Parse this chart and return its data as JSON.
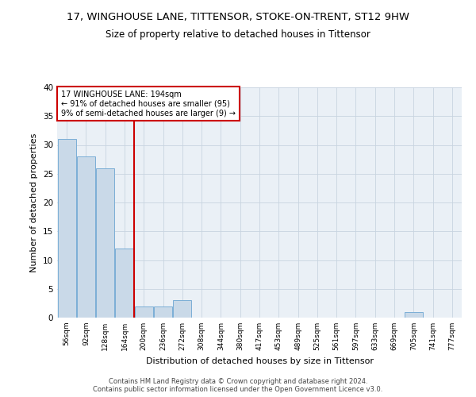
{
  "title": "17, WINGHOUSE LANE, TITTENSOR, STOKE-ON-TRENT, ST12 9HW",
  "subtitle": "Size of property relative to detached houses in Tittensor",
  "xlabel": "Distribution of detached houses by size in Tittensor",
  "ylabel": "Number of detached properties",
  "bin_labels": [
    "56sqm",
    "92sqm",
    "128sqm",
    "164sqm",
    "200sqm",
    "236sqm",
    "272sqm",
    "308sqm",
    "344sqm",
    "380sqm",
    "417sqm",
    "453sqm",
    "489sqm",
    "525sqm",
    "561sqm",
    "597sqm",
    "633sqm",
    "669sqm",
    "705sqm",
    "741sqm",
    "777sqm"
  ],
  "bar_heights": [
    31,
    28,
    26,
    12,
    2,
    2,
    3,
    0,
    0,
    0,
    0,
    0,
    0,
    0,
    0,
    0,
    0,
    0,
    1,
    0,
    0
  ],
  "bar_color": "#c9d9e8",
  "bar_edge_color": "#7baed6",
  "vline_x_idx": 4,
  "vline_color": "#cc0000",
  "annotation_text": "17 WINGHOUSE LANE: 194sqm\n← 91% of detached houses are smaller (95)\n9% of semi-detached houses are larger (9) →",
  "annotation_box_color": "#cc0000",
  "annotation_bg_color": "#ffffff",
  "ylim": [
    0,
    40
  ],
  "yticks": [
    0,
    5,
    10,
    15,
    20,
    25,
    30,
    35,
    40
  ],
  "grid_color": "#c8d4e0",
  "bg_color": "#eaf0f6",
  "footer_line1": "Contains HM Land Registry data © Crown copyright and database right 2024.",
  "footer_line2": "Contains public sector information licensed under the Open Government Licence v3.0.",
  "title_fontsize": 9.5,
  "subtitle_fontsize": 8.5,
  "xlabel_fontsize": 8,
  "ylabel_fontsize": 8
}
